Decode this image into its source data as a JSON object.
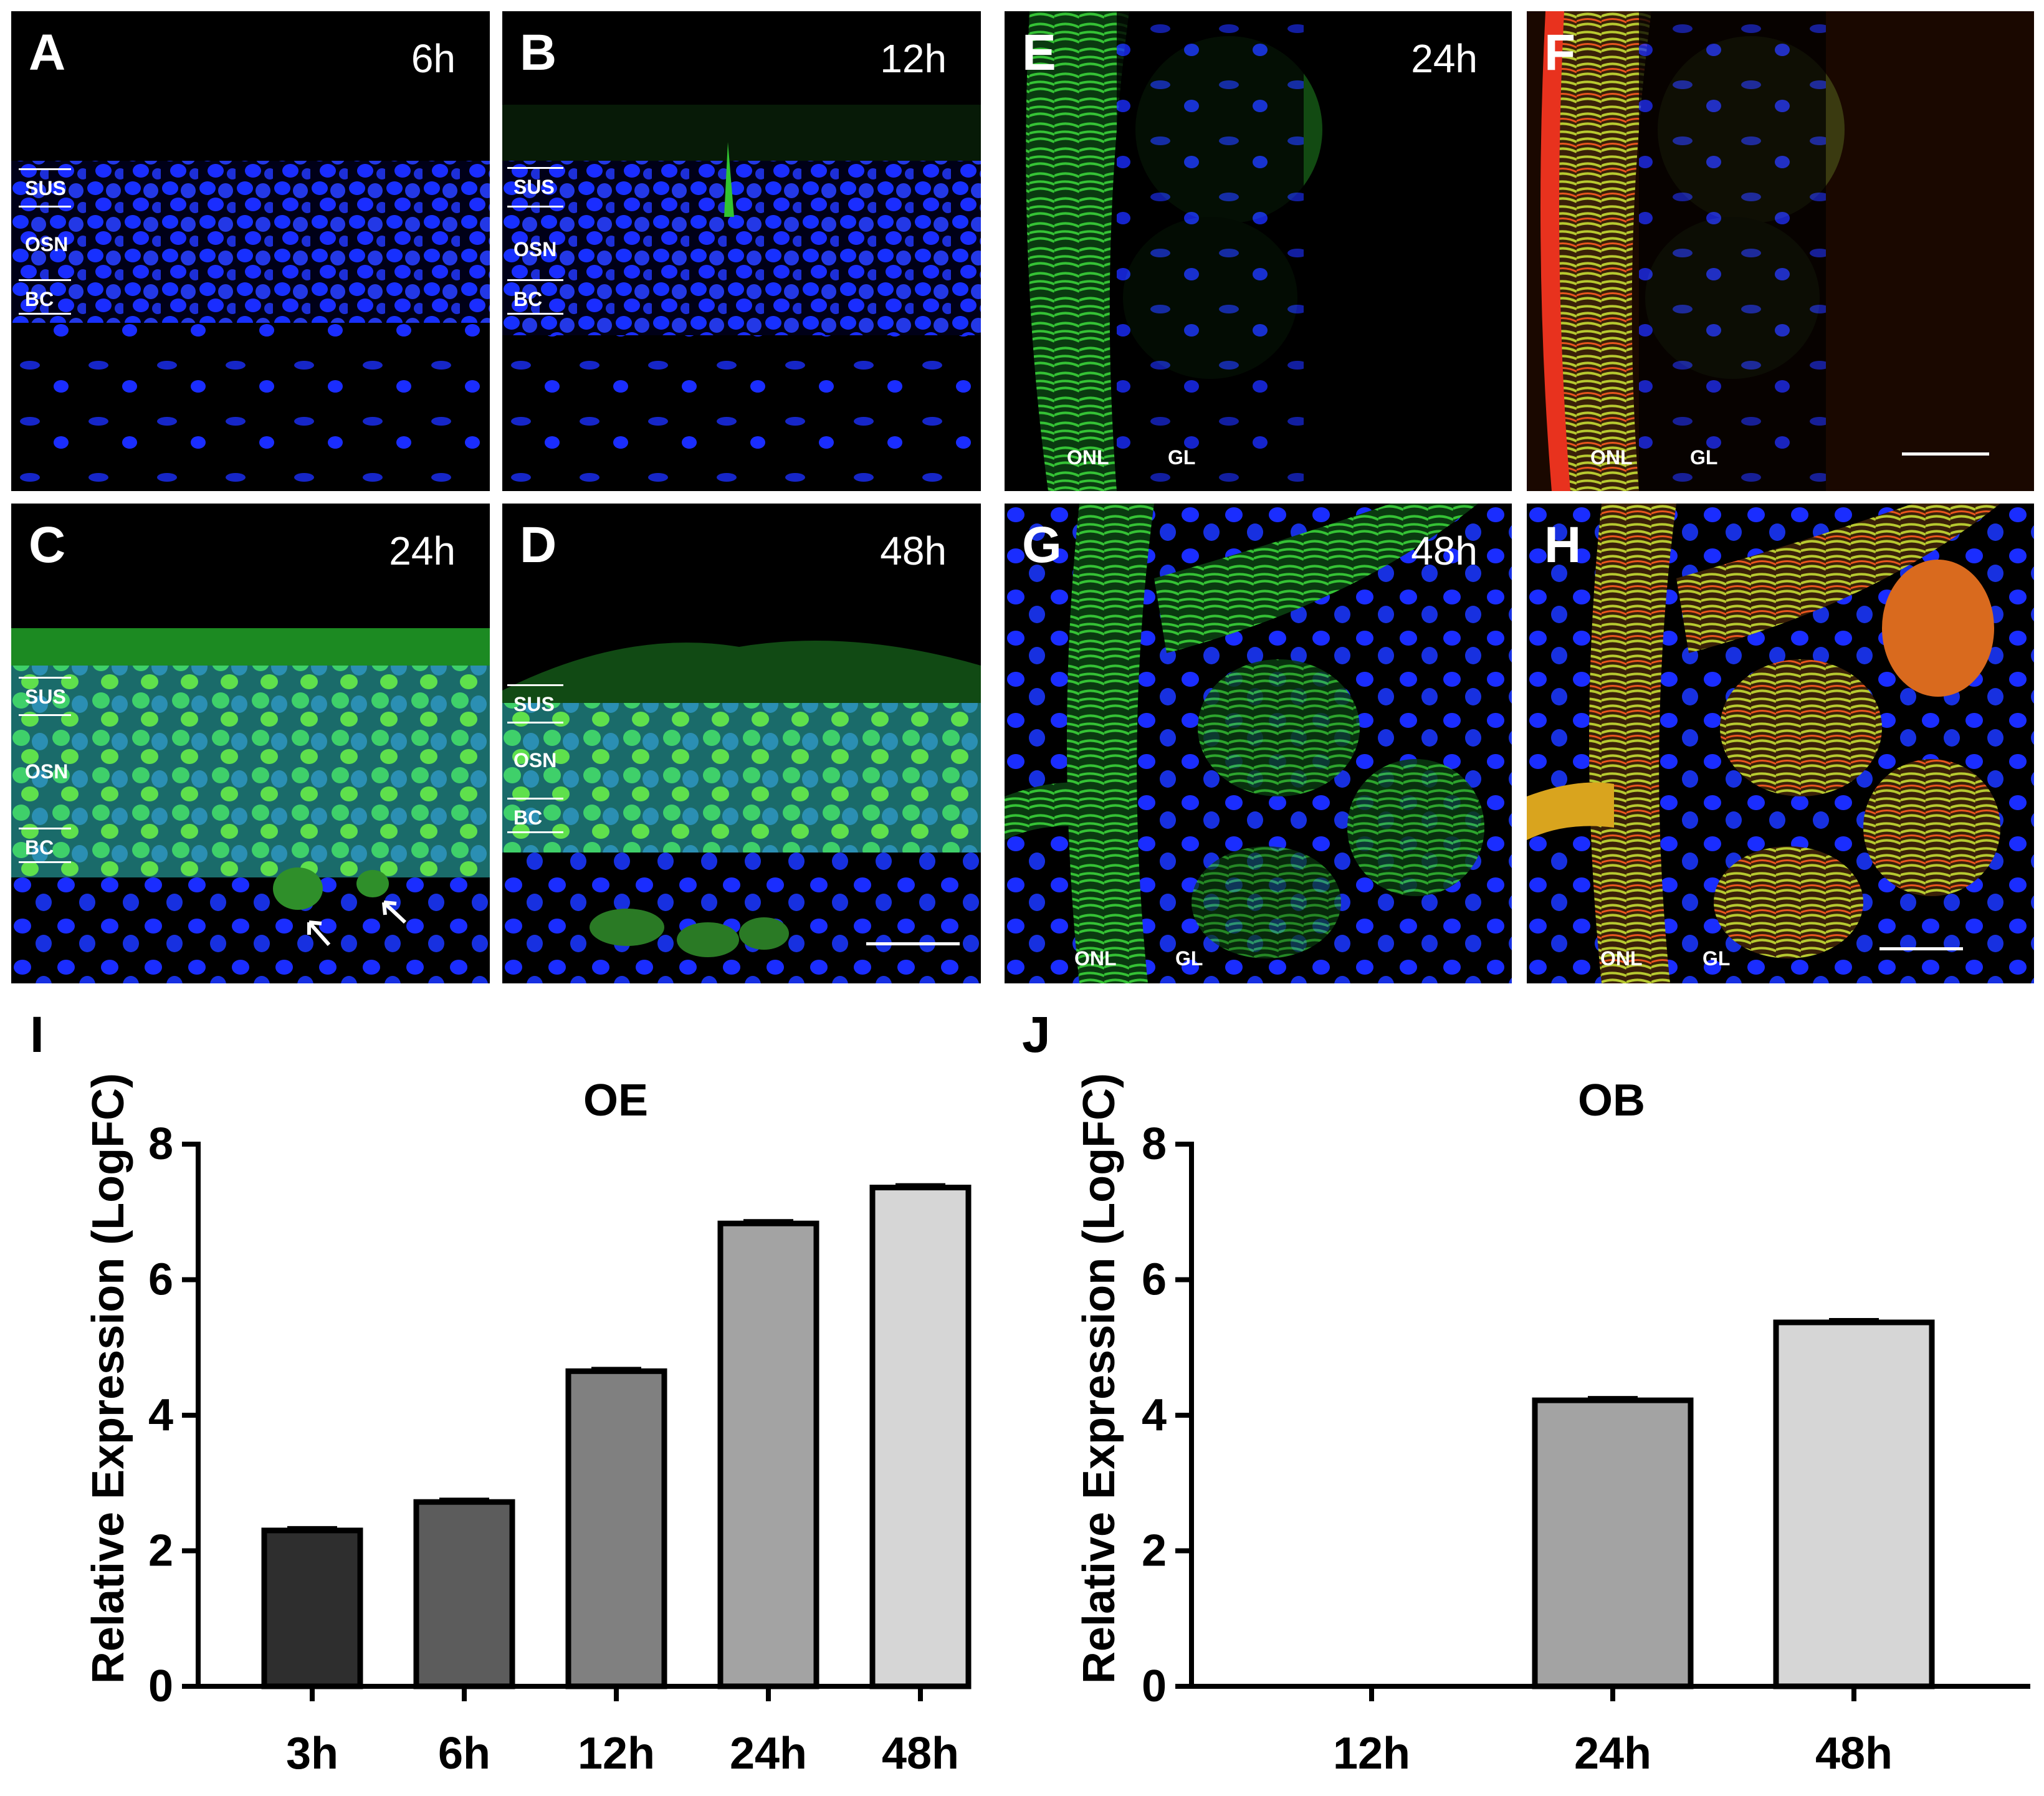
{
  "panels": [
    {
      "id": "A",
      "letter": "A",
      "time": "6h",
      "layers": [
        "SUS",
        "OSN",
        "BC"
      ],
      "signal": "none"
    },
    {
      "id": "B",
      "letter": "B",
      "time": "12h",
      "layers": [
        "SUS",
        "OSN",
        "BC"
      ],
      "signal": "faint"
    },
    {
      "id": "C",
      "letter": "C",
      "time": "24h",
      "layers": [
        "SUS",
        "OSN",
        "BC"
      ],
      "signal": "strong"
    },
    {
      "id": "D",
      "letter": "D",
      "time": "48h",
      "layers": [
        "SUS",
        "OSN",
        "BC"
      ],
      "signal": "strong"
    },
    {
      "id": "E",
      "letter": "E",
      "time": "24h",
      "regions": [
        "ONL",
        "GL"
      ],
      "signal": "green"
    },
    {
      "id": "F",
      "letter": "F",
      "time": "",
      "regions": [
        "ONL",
        "GL"
      ],
      "signal": "merge"
    },
    {
      "id": "G",
      "letter": "G",
      "time": "48h",
      "regions": [
        "ONL",
        "GL"
      ],
      "signal": "green"
    },
    {
      "id": "H",
      "letter": "H",
      "time": "",
      "regions": [
        "ONL",
        "GL"
      ],
      "signal": "merge"
    }
  ],
  "colors": {
    "nuclei": "#1a2dff",
    "gfp": "#2fd02f",
    "red": "#e8321e",
    "bars_oe": [
      "#2e2e2e",
      "#5c5c5c",
      "#808080",
      "#a3a3a3",
      "#d6d6d6"
    ],
    "bars_ob": [
      "#ffffff",
      "#a3a3a3",
      "#d6d6d6"
    ]
  },
  "chart_data": [
    {
      "panel": "I",
      "type": "bar",
      "title": "OE",
      "xlabel": "",
      "ylabel": "Relative Expression (LogFC)",
      "categories": [
        "3h",
        "6h",
        "12h",
        "24h",
        "48h"
      ],
      "values": [
        2.3,
        2.72,
        4.65,
        6.83,
        7.36
      ],
      "ylim": [
        0,
        8
      ],
      "yticks": [
        "0",
        "2",
        "4",
        "6",
        "8"
      ]
    },
    {
      "panel": "J",
      "type": "bar",
      "title": "OB",
      "xlabel": "",
      "ylabel": "Relative Expression (LogFC)",
      "categories": [
        "12h",
        "24h",
        "48h"
      ],
      "values": [
        0,
        4.22,
        5.37
      ],
      "ylim": [
        0,
        8
      ],
      "yticks": [
        "0",
        "2",
        "4",
        "6",
        "8"
      ]
    }
  ]
}
